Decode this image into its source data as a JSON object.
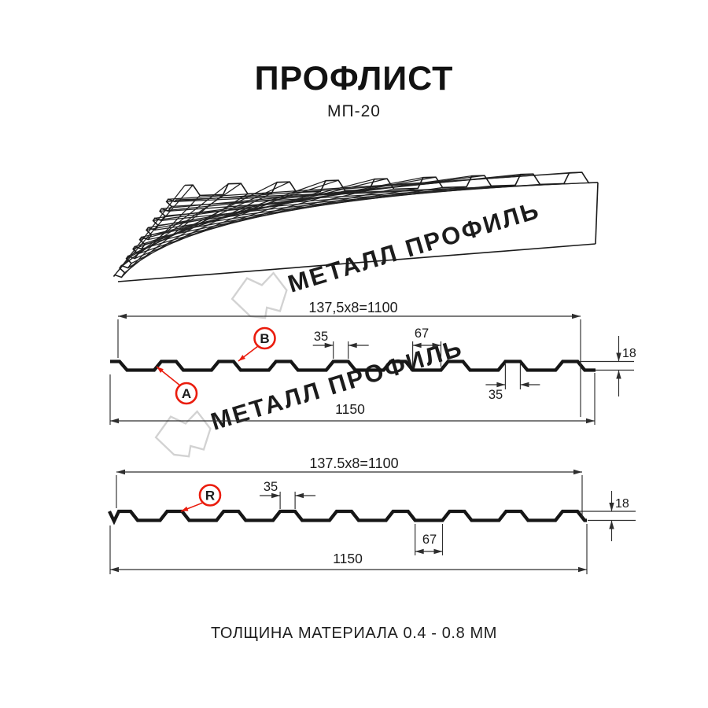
{
  "title": "ПРОФЛИСТ",
  "subtitle": "МП-20",
  "footer": "ТОЛЩИНА МАТЕРИАЛА 0.4 - 0.8 ММ",
  "watermark": {
    "brand": "МЕТАЛЛ ПРОФИЛЬ"
  },
  "colors": {
    "line": "#161616",
    "dim_line": "#2e2e2e",
    "accent_red": "#ea1c0d",
    "watermark_gray": "#d2d2d2"
  },
  "diagram_top": {
    "label_a": "A",
    "label_b": "B",
    "dims": {
      "coverage": "137,5x8=1100",
      "crest_width_top": "35",
      "valley_width": "67",
      "crest_width_bottom": "35",
      "height": "18",
      "overall": "1150"
    }
  },
  "diagram_bottom": {
    "label_r": "R",
    "dims": {
      "coverage": "137.5x8=1100",
      "crest_width": "35",
      "valley_width": "67",
      "height": "18",
      "overall": "1150"
    }
  }
}
